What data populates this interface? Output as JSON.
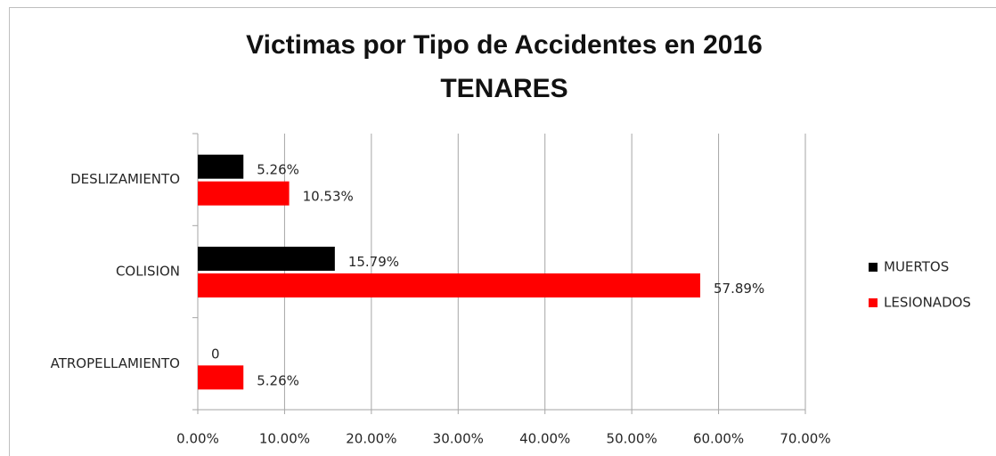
{
  "chart_data": {
    "type": "barh",
    "title": "Victimas por Tipo de Accidentes en 2016",
    "subtitle": "TENARES",
    "categories": [
      "DESLIZAMIENTO",
      "COLISION",
      "ATROPELLAMIENTO"
    ],
    "series": [
      {
        "name": "MUERTOS",
        "color": "#000000",
        "values": [
          5.26,
          15.79,
          0
        ],
        "value_labels": [
          "5.26%",
          "15.79%",
          "0"
        ]
      },
      {
        "name": "LESIONADOS",
        "color": "#ff0000",
        "values": [
          10.53,
          57.89,
          5.26
        ],
        "value_labels": [
          "10.53%",
          "57.89%",
          "5.26%"
        ]
      }
    ],
    "xlim": [
      0,
      70
    ],
    "xticks": [
      {
        "value": 0,
        "label": "0.00%"
      },
      {
        "value": 10,
        "label": "10.00%"
      },
      {
        "value": 20,
        "label": "20.00%"
      },
      {
        "value": 30,
        "label": "30.00%"
      },
      {
        "value": 40,
        "label": "40.00%"
      },
      {
        "value": 50,
        "label": "50.00%"
      },
      {
        "value": 60,
        "label": "60.00%"
      },
      {
        "value": 70,
        "label": "70.00%"
      }
    ],
    "grid": true,
    "legend": "right"
  }
}
